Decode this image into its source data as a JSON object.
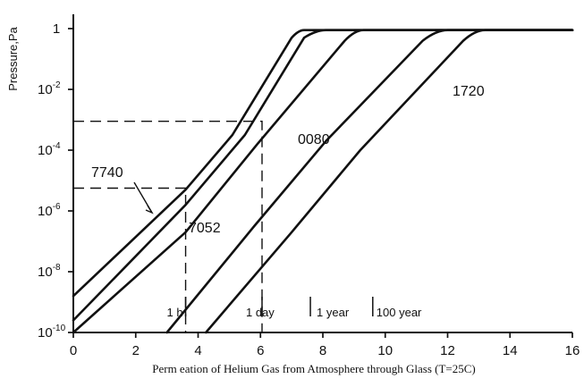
{
  "chart_data": {
    "type": "line",
    "title": "",
    "xlabel": "Perm eation of Helium Gas from Atmosphere through Glass (T=25C)",
    "ylabel": "Pressure,Pa",
    "xlim": [
      0,
      16
    ],
    "ylim_exponent": [
      -10,
      0
    ],
    "y_scale": "log",
    "grid": false,
    "x_tick_labels": [
      "0",
      "2",
      "4",
      "6",
      "8",
      "10",
      "12",
      "14",
      "16"
    ],
    "y_tick_labels": [
      "10",
      "10",
      "10",
      "10",
      "10",
      "1"
    ],
    "y_tick_exponents": [
      "-10",
      "-8",
      "-6",
      "-4",
      "-2",
      ""
    ],
    "curves": [
      {
        "label": "7740",
        "x": [
          0.0,
          3.6,
          5.1,
          7.0,
          7.4,
          16.0
        ],
        "y_exponent": [
          -8.8,
          -5.3,
          -3.5,
          -0.3,
          -0.05,
          -0.05
        ]
      },
      {
        "label": "7052",
        "x": [
          0.0,
          3.6,
          5.5,
          7.4,
          8.1,
          16.0
        ],
        "y_exponent": [
          -9.6,
          -5.8,
          -3.5,
          -0.3,
          -0.05,
          -0.05
        ]
      },
      {
        "label": "",
        "x": [
          0.0,
          3.6,
          5.9,
          8.7,
          9.3,
          16.0
        ],
        "y_exponent": [
          -10.0,
          -6.7,
          -3.8,
          -0.4,
          -0.05,
          -0.05
        ]
      },
      {
        "label": "0080",
        "x": [
          3.0,
          5.8,
          8.1,
          11.2,
          12.0,
          16.0
        ],
        "y_exponent": [
          -10.0,
          -6.5,
          -3.7,
          -0.4,
          -0.05,
          -0.05
        ]
      },
      {
        "label": "1720",
        "x": [
          4.25,
          7.0,
          9.2,
          12.5,
          13.2,
          16.0
        ],
        "y_exponent": [
          -10.0,
          -6.7,
          -4.0,
          -0.4,
          -0.05,
          -0.05
        ]
      }
    ],
    "dashed_guides": [
      {
        "x": 3.6,
        "y_exponent": -5.25
      },
      {
        "x": 6.05,
        "y_exponent": -3.05
      }
    ],
    "time_markers": [
      {
        "label": "1 h",
        "x": 3.6
      },
      {
        "label": "1 day",
        "x": 6.05
      },
      {
        "label": "1 year",
        "x": 7.6
      },
      {
        "label": "100 year",
        "x": 9.6
      }
    ]
  }
}
